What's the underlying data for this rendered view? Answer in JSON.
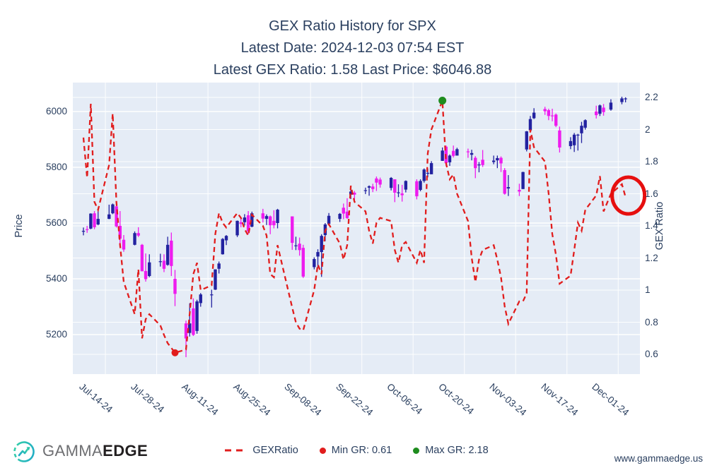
{
  "title": {
    "line1": "GEX Ratio History for SPX",
    "line2": "Latest Date: 2024-12-03 07:54 EST",
    "line3": "Latest GEX Ratio: 1.58 Last Price: $6046.88"
  },
  "axes": {
    "price_title": "Price",
    "gex_title": "GEX Ratio"
  },
  "legend": {
    "gex_label": "GEXRatio",
    "min_label": "Min GR: 0.61",
    "max_label": "Max GR: 2.18"
  },
  "footer": {
    "logo_part1": "GAMMA",
    "logo_part2": "EDGE",
    "url": "www.gammaedge.us"
  },
  "colors": {
    "up_candle": "#2222a0",
    "down_candle": "#ee1cee",
    "gex_line": "#e11d1d",
    "min_dot": "#e11d1d",
    "max_dot": "#1e8c1e",
    "highlight_circle": "#e60f0f",
    "plot_bg": "#e5ecf6",
    "grid": "#ffffff",
    "font": "#2a3f5f",
    "logo_teal": "#25bdb5"
  },
  "chart_data": {
    "type": "candlestick+line",
    "title": "GEX Ratio History for SPX",
    "ylabel_left": "Price",
    "ylabel_right": "GEX Ratio",
    "price_ticks": [
      5200,
      5400,
      5600,
      5800,
      6000
    ],
    "gex_ticks": [
      0.6,
      0.8,
      1,
      1.2,
      1.4,
      1.6,
      1.8,
      2,
      2.2
    ],
    "price_range": [
      5090,
      6090
    ],
    "gex_range": [
      0.48,
      2.29
    ],
    "x_ticks": [
      {
        "label": "Jul-14-24",
        "date": "07-14"
      },
      {
        "label": "Jul-28-24",
        "date": "07-28"
      },
      {
        "label": "Aug-11-24",
        "date": "08-11"
      },
      {
        "label": "Aug-25-24",
        "date": "08-25"
      },
      {
        "label": "Sep-08-24",
        "date": "09-08"
      },
      {
        "label": "Sep-22-24",
        "date": "09-22"
      },
      {
        "label": "Oct-06-24",
        "date": "10-06"
      },
      {
        "label": "Oct-20-24",
        "date": "10-20"
      },
      {
        "label": "Nov-03-24",
        "date": "11-03"
      },
      {
        "label": "Nov-17-24",
        "date": "11-17"
      },
      {
        "label": "Dec-01-24",
        "date": "12-01"
      }
    ],
    "min_gr": {
      "date": "08-02",
      "value": 0.61
    },
    "max_gr": {
      "date": "10-14",
      "value": 2.18
    },
    "latest": {
      "date": "12-03",
      "gex_ratio": 1.58,
      "last_price": 6046.88
    },
    "dates": [
      "07-08",
      "07-09",
      "07-10",
      "07-11",
      "07-12",
      "07-15",
      "07-16",
      "07-17",
      "07-18",
      "07-19",
      "07-22",
      "07-23",
      "07-24",
      "07-25",
      "07-26",
      "07-29",
      "07-30",
      "07-31",
      "08-01",
      "08-02",
      "08-05",
      "08-06",
      "08-07",
      "08-08",
      "08-09",
      "08-12",
      "08-13",
      "08-14",
      "08-15",
      "08-16",
      "08-19",
      "08-20",
      "08-21",
      "08-22",
      "08-23",
      "08-26",
      "08-27",
      "08-28",
      "08-29",
      "08-30",
      "09-03",
      "09-04",
      "09-05",
      "09-06",
      "09-09",
      "09-10",
      "09-11",
      "09-12",
      "09-13",
      "09-16",
      "09-17",
      "09-18",
      "09-19",
      "09-20",
      "09-23",
      "09-24",
      "09-25",
      "09-26",
      "09-27",
      "09-30",
      "10-01",
      "10-02",
      "10-03",
      "10-04",
      "10-07",
      "10-08",
      "10-09",
      "10-10",
      "10-11",
      "10-14",
      "10-15",
      "10-16",
      "10-17",
      "10-18",
      "10-21",
      "10-22",
      "10-23",
      "10-24",
      "10-25",
      "10-28",
      "10-29",
      "10-30",
      "10-31",
      "11-01",
      "11-04",
      "11-05",
      "11-06",
      "11-07",
      "11-08",
      "11-11",
      "11-12",
      "11-13",
      "11-14",
      "11-15",
      "11-18",
      "11-19",
      "11-20",
      "11-21",
      "11-22",
      "11-25",
      "11-26",
      "11-27",
      "11-29",
      "12-02",
      "12-03"
    ],
    "ohlc": [
      [
        5572,
        5584,
        5556,
        5572
      ],
      [
        5578,
        5590,
        5565,
        5576
      ],
      [
        5580,
        5635,
        5578,
        5634
      ],
      [
        5635,
        5643,
        5578,
        5585
      ],
      [
        5595,
        5655,
        5592,
        5615
      ],
      [
        5615,
        5666,
        5614,
        5631
      ],
      [
        5635,
        5670,
        5632,
        5667
      ],
      [
        5660,
        5662,
        5584,
        5588
      ],
      [
        5590,
        5643,
        5522,
        5544
      ],
      [
        5540,
        5557,
        5497,
        5505
      ],
      [
        5522,
        5570,
        5520,
        5564
      ],
      [
        5564,
        5585,
        5550,
        5555
      ],
      [
        5522,
        5525,
        5430,
        5427
      ],
      [
        5428,
        5491,
        5390,
        5399
      ],
      [
        5410,
        5488,
        5406,
        5459
      ],
      [
        5463,
        5490,
        5444,
        5463
      ],
      [
        5465,
        5488,
        5424,
        5436
      ],
      [
        5450,
        5551,
        5447,
        5522
      ],
      [
        5537,
        5566,
        5410,
        5446
      ],
      [
        5400,
        5432,
        5302,
        5346
      ],
      [
        5240,
        5250,
        5119,
        5186
      ],
      [
        5206,
        5312,
        5193,
        5240
      ],
      [
        5294,
        5330,
        5195,
        5199
      ],
      [
        5213,
        5325,
        5203,
        5319
      ],
      [
        5313,
        5349,
        5300,
        5344
      ],
      [
        5342,
        5361,
        5297,
        5344
      ],
      [
        5361,
        5434,
        5360,
        5434
      ],
      [
        5436,
        5462,
        5419,
        5455
      ],
      [
        5488,
        5546,
        5487,
        5543
      ],
      [
        5538,
        5557,
        5521,
        5554
      ],
      [
        5556,
        5609,
        5550,
        5608
      ],
      [
        5603,
        5620,
        5585,
        5597
      ],
      [
        5603,
        5632,
        5591,
        5620
      ],
      [
        5628,
        5643,
        5560,
        5570
      ],
      [
        5587,
        5641,
        5585,
        5635
      ],
      [
        5635,
        5651,
        5602,
        5616
      ],
      [
        5615,
        5631,
        5593,
        5625
      ],
      [
        5624,
        5627,
        5560,
        5592
      ],
      [
        5608,
        5646,
        5581,
        5592
      ],
      [
        5600,
        5651,
        5581,
        5648
      ],
      [
        5624,
        5624,
        5504,
        5529
      ],
      [
        5518,
        5551,
        5503,
        5520
      ],
      [
        5526,
        5548,
        5483,
        5503
      ],
      [
        5511,
        5522,
        5403,
        5408
      ],
      [
        5442,
        5477,
        5434,
        5471
      ],
      [
        5480,
        5506,
        5441,
        5496
      ],
      [
        5496,
        5560,
        5407,
        5554
      ],
      [
        5557,
        5600,
        5535,
        5595
      ],
      [
        5597,
        5636,
        5595,
        5626
      ],
      [
        5615,
        5636,
        5604,
        5633
      ],
      [
        5655,
        5670,
        5614,
        5634
      ],
      [
        5641,
        5689,
        5615,
        5618
      ],
      [
        5702,
        5733,
        5686,
        5713
      ],
      [
        5709,
        5715,
        5674,
        5702
      ],
      [
        5718,
        5727,
        5704,
        5718
      ],
      [
        5727,
        5735,
        5698,
        5732
      ],
      [
        5731,
        5741,
        5711,
        5722
      ],
      [
        5760,
        5767,
        5715,
        5745
      ],
      [
        5756,
        5763,
        5727,
        5738
      ],
      [
        5726,
        5765,
        5717,
        5762
      ],
      [
        5757,
        5757,
        5675,
        5709
      ],
      [
        5708,
        5739,
        5693,
        5710
      ],
      [
        5706,
        5737,
        5677,
        5700
      ],
      [
        5720,
        5753,
        5710,
        5751
      ],
      [
        5750,
        5757,
        5685,
        5696
      ],
      [
        5719,
        5757,
        5714,
        5751
      ],
      [
        5751,
        5796,
        5745,
        5792
      ],
      [
        5778,
        5795,
        5764,
        5780
      ],
      [
        5775,
        5822,
        5775,
        5815
      ],
      [
        5823,
        5871,
        5823,
        5860
      ],
      [
        5874,
        5878,
        5805,
        5815
      ],
      [
        5818,
        5846,
        5805,
        5842
      ],
      [
        5859,
        5878,
        5835,
        5841
      ],
      [
        5842,
        5870,
        5842,
        5865
      ],
      [
        5857,
        5867,
        5834,
        5854
      ],
      [
        5845,
        5863,
        5825,
        5851
      ],
      [
        5834,
        5840,
        5761,
        5797
      ],
      [
        5810,
        5819,
        5782,
        5810
      ],
      [
        5827,
        5862,
        5801,
        5808
      ],
      [
        5819,
        5842,
        5811,
        5824
      ],
      [
        5825,
        5842,
        5797,
        5833
      ],
      [
        5834,
        5839,
        5783,
        5814
      ],
      [
        5790,
        5797,
        5702,
        5705
      ],
      [
        5724,
        5772,
        5697,
        5729
      ],
      [
        5719,
        5741,
        5697,
        5713
      ],
      [
        5722,
        5784,
        5722,
        5783
      ],
      [
        5864,
        5930,
        5857,
        5929
      ],
      [
        5933,
        5984,
        5933,
        5973
      ],
      [
        5976,
        6012,
        5973,
        5996
      ],
      [
        6009,
        6017,
        5988,
        6001
      ],
      [
        6005,
        6010,
        5969,
        5984
      ],
      [
        5986,
        6010,
        5965,
        5985
      ],
      [
        5989,
        5993,
        5944,
        5949
      ],
      [
        5932,
        5946,
        5853,
        5871
      ],
      [
        5876,
        5908,
        5865,
        5894
      ],
      [
        5879,
        5923,
        5855,
        5917
      ],
      [
        5914,
        5920,
        5860,
        5917
      ],
      [
        5922,
        5963,
        5887,
        5949
      ],
      [
        5942,
        5972,
        5935,
        5969
      ],
      [
        6000,
        6021,
        5975,
        5987
      ],
      [
        5992,
        6025,
        5984,
        6022
      ],
      [
        6014,
        6027,
        5985,
        5998
      ],
      [
        6007,
        6044,
        6003,
        6032
      ],
      [
        6034,
        6053,
        6026,
        6047
      ],
      [
        6044,
        6051,
        6033,
        6047
      ]
    ],
    "gex_ratio": [
      1.95,
      1.7,
      2.16,
      1.55,
      1.5,
      1.78,
      2.1,
      1.55,
      1.28,
      1.05,
      0.85,
      1.13,
      0.7,
      0.82,
      0.85,
      0.78,
      0.72,
      0.67,
      0.64,
      0.61,
      0.63,
      0.85,
      1.1,
      1.17,
      1.0,
      1.03,
      1.35,
      1.48,
      1.42,
      1.39,
      1.48,
      1.45,
      1.38,
      1.34,
      1.47,
      1.4,
      1.34,
      1.1,
      1.08,
      1.28,
      0.89,
      0.8,
      0.76,
      0.75,
      1.0,
      1.16,
      1.1,
      1.37,
      1.41,
      1.29,
      1.19,
      1.28,
      1.65,
      1.55,
      1.49,
      1.37,
      1.29,
      1.42,
      1.45,
      1.43,
      1.25,
      1.17,
      1.28,
      1.3,
      1.17,
      1.25,
      1.17,
      1.85,
      2.0,
      2.18,
      1.79,
      1.69,
      1.72,
      1.6,
      1.43,
      1.2,
      1.05,
      1.19,
      1.25,
      1.28,
      1.19,
      1.08,
      0.9,
      0.79,
      0.93,
      0.93,
      0.98,
      2.0,
      1.89,
      1.8,
      1.6,
      1.35,
      1.22,
      1.04,
      1.09,
      1.25,
      1.42,
      1.37,
      1.5,
      1.59,
      1.71,
      1.49,
      1.6,
      1.66,
      1.58
    ],
    "legend_position": "bottom",
    "grid": true
  }
}
